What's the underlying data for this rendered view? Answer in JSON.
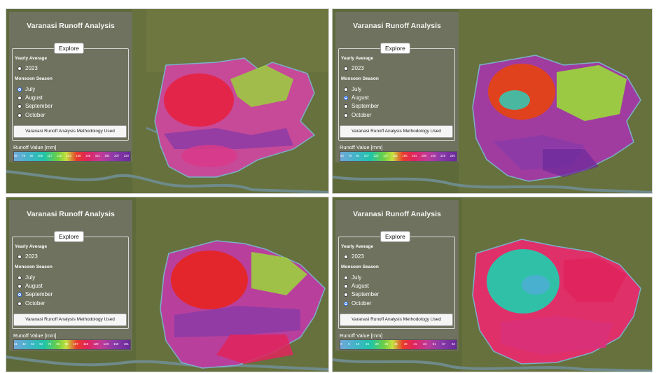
{
  "panels": [
    {
      "title": "Varanasi Runoff Analysis",
      "explore": "Explore",
      "yearly_label": "Yearly Average",
      "year_option": "2023",
      "monsoon_label": "Monsoon Season",
      "months": [
        "July",
        "August",
        "September",
        "October"
      ],
      "selected_month": "July",
      "method_button": "Varanasi Runoff Analysis Methodology Used",
      "legend_title": "Runoff Value [mm]",
      "legend_ticks": [
        "66",
        "79",
        "92",
        "105",
        "117",
        "130",
        "143",
        "156",
        "168",
        "181",
        "194",
        "207",
        "220"
      ],
      "colors": {
        "primary": "#d9306a",
        "hot": "#e8253c",
        "green": "#8fd040"
      }
    },
    {
      "title": "Varanasi Runoff Analysis",
      "explore": "Explore",
      "yearly_label": "Yearly Average",
      "year_option": "2023",
      "monsoon_label": "Monsoon Season",
      "months": [
        "July",
        "August",
        "September",
        "October"
      ],
      "selected_month": "August",
      "method_button": "Varanasi Runoff Analysis Methodology Used",
      "legend_title": "Runoff Value [mm]",
      "legend_ticks": [
        "63",
        "78",
        "92",
        "107",
        "122",
        "137",
        "151",
        "166",
        "181",
        "195",
        "210",
        "225",
        "240"
      ],
      "colors": {
        "primary": "#a03ca0",
        "hot": "#e04a1a",
        "green": "#9ad83a"
      }
    },
    {
      "title": "Varanasi Runoff Analysis",
      "explore": "Explore",
      "yearly_label": "Yearly Average",
      "year_option": "2023",
      "monsoon_label": "Monsoon Season",
      "months": [
        "July",
        "August",
        "September",
        "October"
      ],
      "selected_month": "September",
      "method_button": "Varanasi Runoff Analysis Methodology Used",
      "legend_title": "Runoff Value [mm]",
      "legend_ticks": [
        "31",
        "42",
        "53",
        "64",
        "75",
        "86",
        "96",
        "107",
        "118",
        "129",
        "140",
        "150",
        "161"
      ],
      "colors": {
        "primary": "#b8409c",
        "hot": "#e8242a",
        "green": "#9ad83a"
      }
    },
    {
      "title": "Varanasi Runoff Analysis",
      "explore": "Explore",
      "yearly_label": "Yearly Average",
      "year_option": "2023",
      "monsoon_label": "Monsoon Season",
      "months": [
        "July",
        "August",
        "September",
        "October"
      ],
      "selected_month": "October",
      "method_button": "Varanasi Runoff Analysis Methodology Used",
      "legend_title": "Runoff Value [mm]",
      "legend_ticks": [
        "0",
        "5",
        "10",
        "15",
        "20",
        "26",
        "31",
        "36",
        "41",
        "46",
        "51",
        "57",
        "62"
      ],
      "colors": {
        "primary": "#e0306a",
        "hot": "#e03050",
        "green": "#30c0a8"
      }
    }
  ]
}
